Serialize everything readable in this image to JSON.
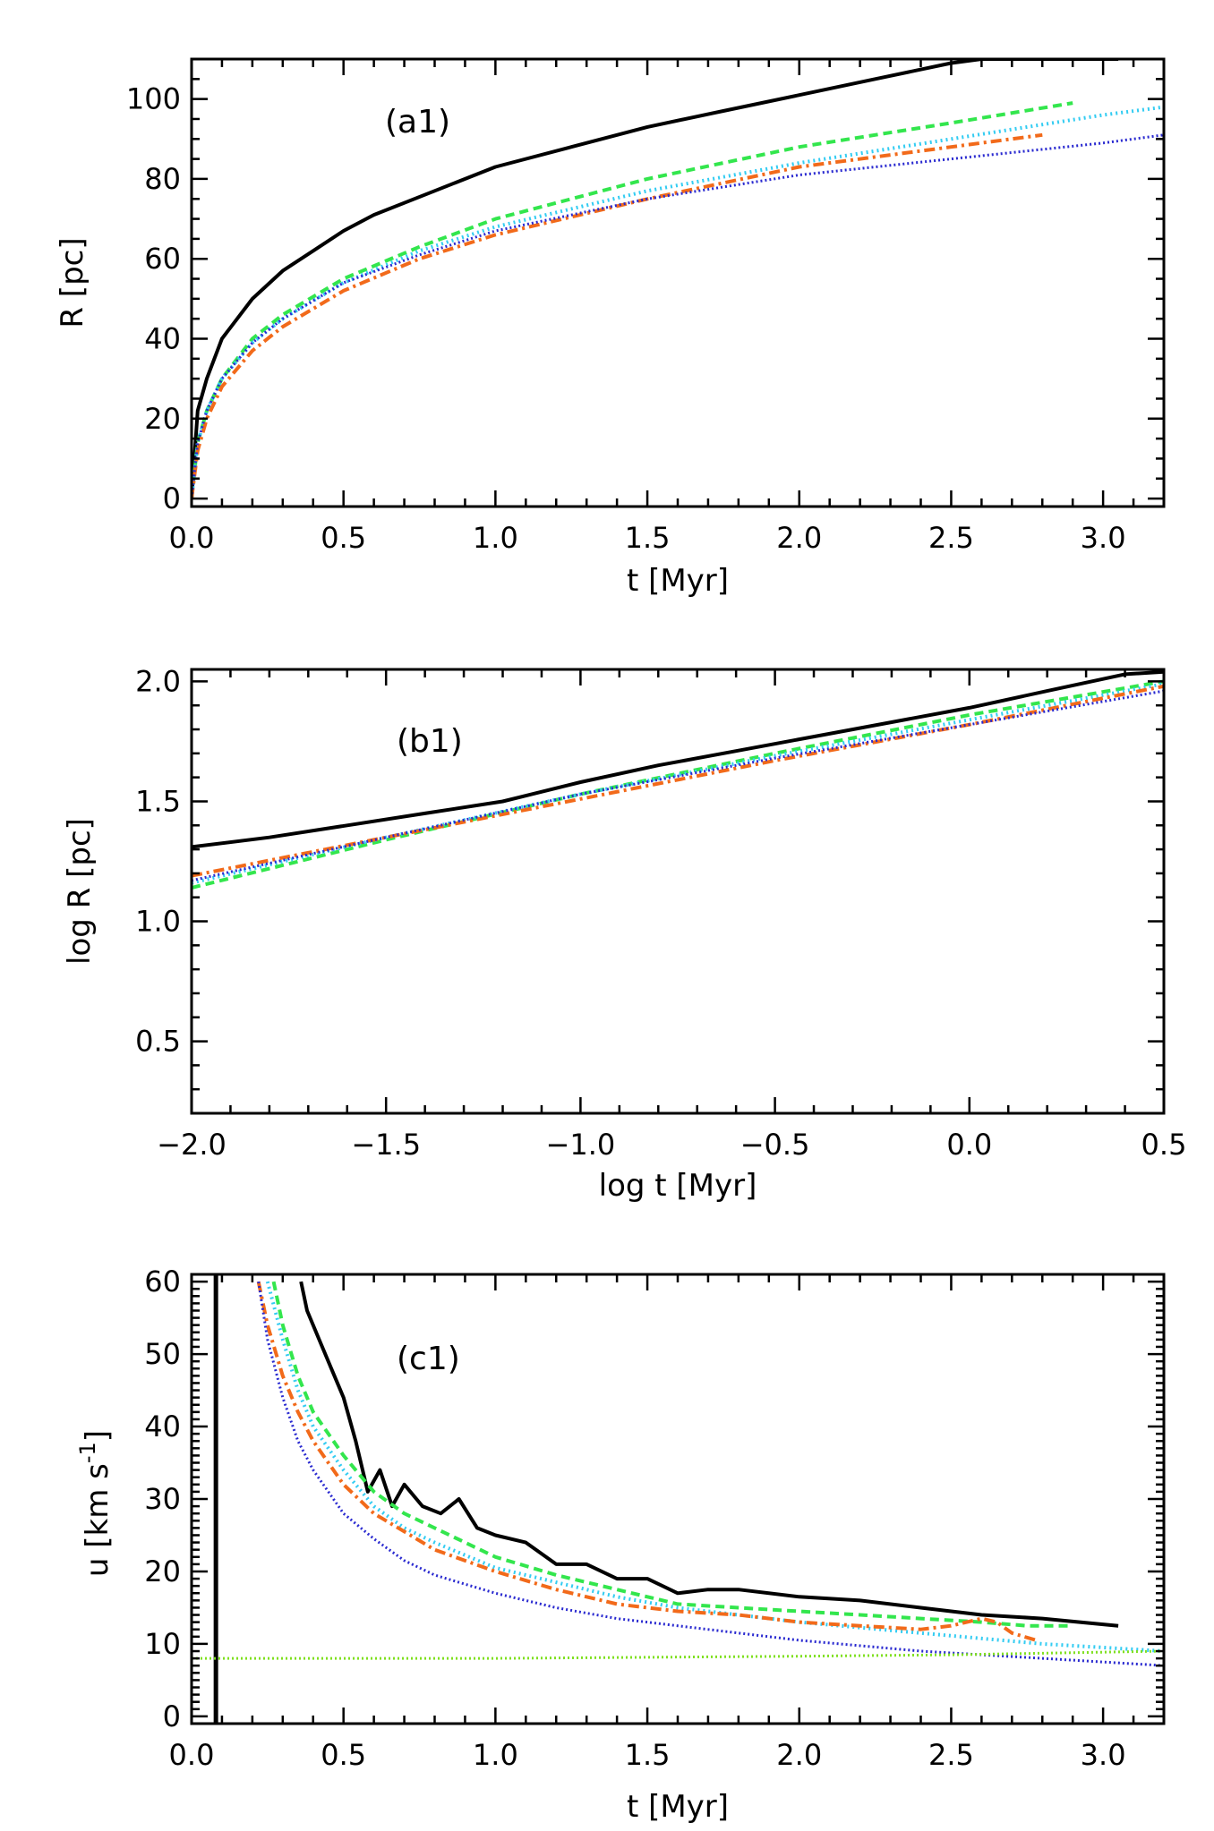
{
  "colors": {
    "black": "#000000",
    "green": "#33e64d",
    "cyan": "#33ccf2",
    "orange": "#f26a1a",
    "navy": "#2a2ad0",
    "lime": "#7fe01f"
  },
  "chart_data": [
    {
      "id": "a1",
      "type": "line",
      "label": "(a1)",
      "xlabel": "t [Myr]",
      "ylabel": "R [pc]",
      "xlim": [
        0,
        3.2
      ],
      "ylim": [
        -2,
        110
      ],
      "xticks": [
        0,
        0.5,
        1,
        1.5,
        2,
        2.5,
        3
      ],
      "xtick_labels": [
        "0.0",
        "0.5",
        "1.0",
        "1.5",
        "2.0",
        "2.5",
        "3.0"
      ],
      "yticks": [
        0,
        20,
        40,
        60,
        80,
        100
      ],
      "ytick_labels": [
        "0",
        "20",
        "40",
        "60",
        "80",
        "100"
      ],
      "series": [
        {
          "name": "black",
          "color_key": "black",
          "dash": "solid",
          "width": 4,
          "x": [
            0,
            0.02,
            0.05,
            0.1,
            0.2,
            0.3,
            0.4,
            0.5,
            0.6,
            0.8,
            1.0,
            1.25,
            1.5,
            1.75,
            2.0,
            2.25,
            2.5,
            2.6,
            2.8,
            3.05
          ],
          "y": [
            0,
            22,
            30,
            40,
            50,
            57,
            62,
            67,
            71,
            77,
            83,
            88,
            93,
            97,
            101,
            105,
            109,
            110,
            110,
            110
          ]
        },
        {
          "name": "green",
          "color_key": "green",
          "dash": "10,6",
          "width": 4,
          "x": [
            0,
            0.02,
            0.05,
            0.1,
            0.2,
            0.3,
            0.5,
            0.75,
            1.0,
            1.5,
            2.0,
            2.5,
            2.9
          ],
          "y": [
            0,
            14,
            22,
            30,
            40,
            46,
            55,
            63,
            70,
            80,
            88,
            94,
            99
          ]
        },
        {
          "name": "cyan",
          "color_key": "cyan",
          "dash": "2,4",
          "width": 4,
          "x": [
            0,
            0.02,
            0.05,
            0.1,
            0.2,
            0.3,
            0.5,
            0.75,
            1.0,
            1.5,
            2.0,
            2.5,
            3.0,
            3.2
          ],
          "y": [
            0,
            14,
            22,
            30,
            39,
            45,
            54,
            62,
            68,
            77,
            84,
            90,
            96,
            98
          ]
        },
        {
          "name": "orange",
          "color_key": "orange",
          "dash": "12,5,3,5",
          "width": 4,
          "x": [
            0,
            0.02,
            0.05,
            0.1,
            0.2,
            0.3,
            0.5,
            0.75,
            1.0,
            1.5,
            2.0,
            2.5,
            2.8
          ],
          "y": [
            0,
            12,
            20,
            28,
            37,
            43,
            52,
            60,
            66,
            75,
            83,
            88,
            91
          ]
        },
        {
          "name": "navy",
          "color_key": "navy",
          "dash": "2,3",
          "width": 3,
          "x": [
            0,
            0.02,
            0.05,
            0.1,
            0.2,
            0.3,
            0.5,
            0.75,
            1.0,
            1.5,
            2.0,
            2.5,
            3.0,
            3.2
          ],
          "y": [
            0,
            14,
            22,
            30,
            39,
            45,
            54,
            61,
            67,
            75,
            81,
            85,
            89,
            91
          ]
        }
      ]
    },
    {
      "id": "b1",
      "type": "line",
      "label": "(b1)",
      "xlabel": "log t [Myr]",
      "ylabel": "log R [pc]",
      "xlim": [
        -2.0,
        0.5
      ],
      "ylim": [
        0.2,
        2.05
      ],
      "xticks": [
        -2,
        -1.5,
        -1,
        -0.5,
        0,
        0.5
      ],
      "xtick_labels": [
        "−2.0",
        "−1.5",
        "−1.0",
        "−0.5",
        "0.0",
        "0.5"
      ],
      "yticks": [
        0.5,
        1.0,
        1.5,
        2.0
      ],
      "ytick_labels": [
        "0.5",
        "1.0",
        "1.5",
        "2.0"
      ],
      "series": [
        {
          "name": "black",
          "color_key": "black",
          "dash": "solid",
          "width": 4,
          "x": [
            -2.0,
            -1.8,
            -1.6,
            -1.4,
            -1.2,
            -1.0,
            -0.8,
            -0.6,
            -0.4,
            -0.2,
            0.0,
            0.2,
            0.4,
            0.5
          ],
          "y": [
            1.31,
            1.35,
            1.4,
            1.45,
            1.5,
            1.58,
            1.65,
            1.71,
            1.77,
            1.83,
            1.89,
            1.96,
            2.03,
            2.04
          ]
        },
        {
          "name": "green",
          "color_key": "green",
          "dash": "10,6",
          "width": 4,
          "x": [
            -2.0,
            -1.5,
            -1.0,
            -0.5,
            0.0,
            0.5
          ],
          "y": [
            1.14,
            1.34,
            1.53,
            1.7,
            1.86,
            2.0
          ]
        },
        {
          "name": "cyan",
          "color_key": "cyan",
          "dash": "2,4",
          "width": 4,
          "x": [
            -2.0,
            -1.5,
            -1.0,
            -0.5,
            0.0,
            0.5
          ],
          "y": [
            1.16,
            1.35,
            1.53,
            1.69,
            1.84,
            1.99
          ]
        },
        {
          "name": "orange",
          "color_key": "orange",
          "dash": "12,5,3,5",
          "width": 4,
          "x": [
            -2.0,
            -1.5,
            -1.0,
            -0.5,
            0.0,
            0.5
          ],
          "y": [
            1.19,
            1.35,
            1.51,
            1.67,
            1.82,
            1.98
          ]
        },
        {
          "name": "navy",
          "color_key": "navy",
          "dash": "2,3",
          "width": 3,
          "x": [
            -2.0,
            -1.5,
            -1.0,
            -0.5,
            0.0,
            0.5
          ],
          "y": [
            1.17,
            1.35,
            1.53,
            1.68,
            1.82,
            1.96
          ]
        }
      ]
    },
    {
      "id": "c1",
      "type": "line",
      "label": "(c1)",
      "xlabel": "t [Myr]",
      "ylabel": "u [km s",
      "ylabel_sup": "-1",
      "ylabel_end": "]",
      "xlim": [
        0,
        3.2
      ],
      "ylim": [
        -1,
        61
      ],
      "xticks": [
        0,
        0.5,
        1,
        1.5,
        2,
        2.5,
        3
      ],
      "xtick_labels": [
        "0.0",
        "0.5",
        "1.0",
        "1.5",
        "2.0",
        "2.5",
        "3.0"
      ],
      "yticks": [
        0,
        10,
        20,
        30,
        40,
        50,
        60
      ],
      "ytick_labels": [
        "0",
        "10",
        "20",
        "30",
        "40",
        "50",
        "60"
      ],
      "vline_x": 0.08,
      "series": [
        {
          "name": "black",
          "color_key": "black",
          "dash": "solid",
          "width": 4,
          "x": [
            0.36,
            0.38,
            0.42,
            0.46,
            0.5,
            0.54,
            0.58,
            0.62,
            0.66,
            0.7,
            0.76,
            0.82,
            0.88,
            0.94,
            1.0,
            1.1,
            1.2,
            1.3,
            1.4,
            1.5,
            1.6,
            1.7,
            1.8,
            2.0,
            2.2,
            2.4,
            2.6,
            2.8,
            3.05
          ],
          "y": [
            60,
            56,
            52,
            48,
            44,
            38,
            31,
            34,
            29,
            32,
            29,
            28,
            30,
            26,
            25,
            24,
            21,
            21,
            19,
            19,
            17,
            17.5,
            17.5,
            16.5,
            16,
            15,
            14,
            13.5,
            12.5
          ]
        },
        {
          "name": "green",
          "color_key": "green",
          "dash": "10,6",
          "width": 4,
          "x": [
            0.27,
            0.3,
            0.35,
            0.4,
            0.5,
            0.6,
            0.7,
            0.8,
            1.0,
            1.2,
            1.4,
            1.6,
            1.8,
            2.0,
            2.2,
            2.4,
            2.6,
            2.75,
            2.9
          ],
          "y": [
            60,
            54,
            47,
            42,
            36,
            31,
            28,
            26,
            22,
            19.5,
            17.5,
            15.5,
            15,
            14.5,
            14,
            13.5,
            13,
            12.5,
            12.5
          ]
        },
        {
          "name": "cyan",
          "color_key": "cyan",
          "dash": "2,4",
          "width": 4,
          "x": [
            0.25,
            0.3,
            0.35,
            0.4,
            0.5,
            0.6,
            0.7,
            0.8,
            1.0,
            1.2,
            1.4,
            1.6,
            1.8,
            2.0,
            2.4,
            2.8,
            3.2
          ],
          "y": [
            60,
            52,
            45,
            40,
            34,
            29,
            26,
            24,
            20.5,
            18.5,
            16.5,
            15,
            14,
            13,
            11.5,
            10,
            9
          ]
        },
        {
          "name": "orange",
          "color_key": "orange",
          "dash": "12,5,3,5",
          "width": 4,
          "x": [
            0.22,
            0.25,
            0.3,
            0.35,
            0.4,
            0.5,
            0.6,
            0.7,
            0.8,
            1.0,
            1.2,
            1.4,
            1.6,
            1.8,
            2.0,
            2.2,
            2.4,
            2.5,
            2.6,
            2.65,
            2.7,
            2.78
          ],
          "y": [
            60,
            54,
            47,
            42,
            38,
            32,
            28,
            25.5,
            23,
            20,
            17.5,
            15.5,
            14.5,
            14,
            13,
            12.5,
            12,
            12.5,
            13.5,
            13,
            11.5,
            10.5
          ]
        },
        {
          "name": "navy",
          "color_key": "navy",
          "dash": "2,3",
          "width": 3,
          "x": [
            0.22,
            0.25,
            0.3,
            0.35,
            0.4,
            0.5,
            0.6,
            0.7,
            0.8,
            1.0,
            1.2,
            1.4,
            1.6,
            1.8,
            2.0,
            2.4,
            2.8,
            3.2
          ],
          "y": [
            60,
            52,
            44,
            38,
            34,
            28,
            24.5,
            21.5,
            19.5,
            17,
            15,
            13.5,
            12.5,
            11.5,
            10.5,
            9,
            8,
            7
          ]
        },
        {
          "name": "lime",
          "color_key": "lime",
          "dash": "2,3",
          "width": 3,
          "x": [
            0.0,
            1.0,
            2.0,
            2.5,
            3.2
          ],
          "y": [
            8,
            8,
            8.3,
            8.5,
            9
          ]
        }
      ]
    }
  ]
}
